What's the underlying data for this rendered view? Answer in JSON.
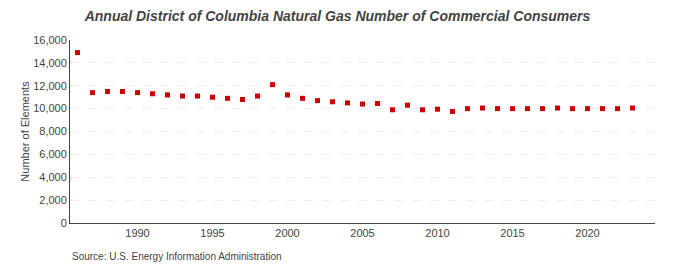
{
  "chart_data": {
    "type": "scatter",
    "title": "Annual District of Columbia Natural Gas Number of Commercial Consumers",
    "ylabel": "Number of Elements",
    "annotations": [
      "Source: U.S. Energy Information Administration"
    ],
    "x": [
      1986,
      1987,
      1988,
      1989,
      1990,
      1991,
      1992,
      1993,
      1994,
      1995,
      1996,
      1997,
      1998,
      1999,
      2000,
      2001,
      2002,
      2003,
      2004,
      2005,
      2006,
      2007,
      2008,
      2009,
      2010,
      2011,
      2012,
      2013,
      2014,
      2015,
      2016,
      2017,
      2018,
      2019,
      2020,
      2021,
      2022,
      2023
    ],
    "values": [
      14900,
      11400,
      11500,
      11500,
      11400,
      11300,
      11200,
      11100,
      11100,
      11000,
      10900,
      10800,
      11100,
      12100,
      11200,
      10900,
      10700,
      10600,
      10500,
      10400,
      10450,
      9900,
      10300,
      9900,
      9950,
      9750,
      10000,
      10050,
      10000,
      10000,
      10000,
      10000,
      10050,
      10000,
      10000,
      10000,
      10000,
      10050
    ],
    "color": "#cc0000",
    "marker": "square",
    "xlim": [
      1985.5,
      2024.5
    ],
    "xticks": [
      1990,
      1995,
      2000,
      2005,
      2010,
      2015,
      2020
    ],
    "ylim": [
      0,
      16000
    ],
    "yticks": [
      0,
      {
        "value": 2000,
        "label": "2,000"
      },
      {
        "value": 4000,
        "label": "4,000"
      },
      {
        "value": 6000,
        "label": "6,000"
      },
      {
        "value": 8000,
        "label": "8,000"
      },
      {
        "value": 10000,
        "label": "10,000"
      },
      {
        "value": 12000,
        "label": "12,000"
      },
      {
        "value": 14000,
        "label": "14,000"
      },
      {
        "value": 16000,
        "label": "16,000"
      }
    ],
    "grid": true
  }
}
